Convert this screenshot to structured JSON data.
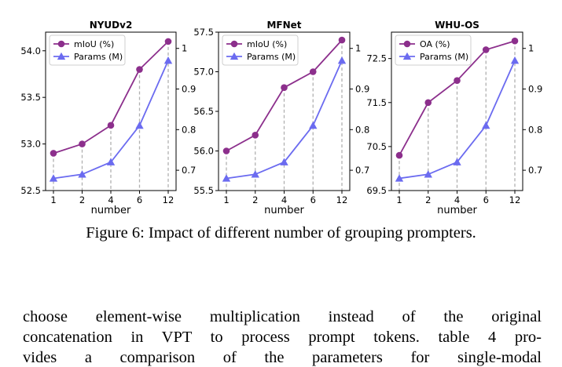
{
  "figure": {
    "caption": "Figure 6: Impact of different number of grouping prompters.",
    "colors": {
      "miou": "#8c2f8c",
      "params": "#6b6bf0",
      "guide": "#b0b0b0"
    }
  },
  "chart_data": [
    {
      "type": "line",
      "title": "NYUDv2",
      "xlabel": "number",
      "categories": [
        "1",
        "2",
        "4",
        "6",
        "12"
      ],
      "ylim_left": [
        52.5,
        54.2
      ],
      "yticks_left": [
        "52.5",
        "53.0",
        "53.5",
        "54.0"
      ],
      "ylim_right": [
        0.65,
        1.04
      ],
      "yticks_right": [
        "0.7",
        "0.8",
        "0.9",
        "1"
      ],
      "legend_position": "upper-left",
      "grid": false,
      "series": [
        {
          "name": "mIoU (%)",
          "axis": "left",
          "marker": "circle",
          "values": [
            52.9,
            53.0,
            53.2,
            53.8,
            54.1
          ]
        },
        {
          "name": "Params (M)",
          "axis": "right",
          "marker": "triangle",
          "values": [
            0.68,
            0.69,
            0.72,
            0.81,
            0.97
          ]
        }
      ]
    },
    {
      "type": "line",
      "title": "MFNet",
      "xlabel": "number",
      "categories": [
        "1",
        "2",
        "4",
        "6",
        "12"
      ],
      "ylim_left": [
        55.5,
        57.5
      ],
      "yticks_left": [
        "55.5",
        "56.0",
        "56.5",
        "57.0",
        "57.5"
      ],
      "ylim_right": [
        0.65,
        1.04
      ],
      "yticks_right": [
        "0.7",
        "0.8",
        "0.9",
        "1"
      ],
      "legend_position": "upper-left",
      "grid": false,
      "series": [
        {
          "name": "mIoU (%)",
          "axis": "left",
          "marker": "circle",
          "values": [
            56.0,
            56.2,
            56.8,
            57.0,
            57.4
          ]
        },
        {
          "name": "Params (M)",
          "axis": "right",
          "marker": "triangle",
          "values": [
            0.68,
            0.69,
            0.72,
            0.81,
            0.97
          ]
        }
      ]
    },
    {
      "type": "line",
      "title": "WHU-OS",
      "xlabel": "number",
      "categories": [
        "1",
        "2",
        "4",
        "6",
        "12"
      ],
      "ylim_left": [
        69.5,
        73.1
      ],
      "yticks_left": [
        "69.5",
        "70.5",
        "71.5",
        "72.5"
      ],
      "ylim_right": [
        0.65,
        1.04
      ],
      "yticks_right": [
        "0.7",
        "0.8",
        "0.9",
        "1"
      ],
      "legend_position": "upper-left",
      "grid": false,
      "series": [
        {
          "name": "OA (%)",
          "axis": "left",
          "marker": "circle",
          "values": [
            70.3,
            71.5,
            72.0,
            72.7,
            72.9
          ]
        },
        {
          "name": "Params (M)",
          "axis": "right",
          "marker": "triangle",
          "values": [
            0.68,
            0.69,
            0.72,
            0.81,
            0.97
          ]
        }
      ]
    }
  ],
  "body_text": {
    "line1": "choose element-wise multiplication instead of the original",
    "line2": "concatenation in VPT to process prompt tokens. table 4 pro-",
    "line3": "vides a comparison of the parameters for single-modal"
  }
}
